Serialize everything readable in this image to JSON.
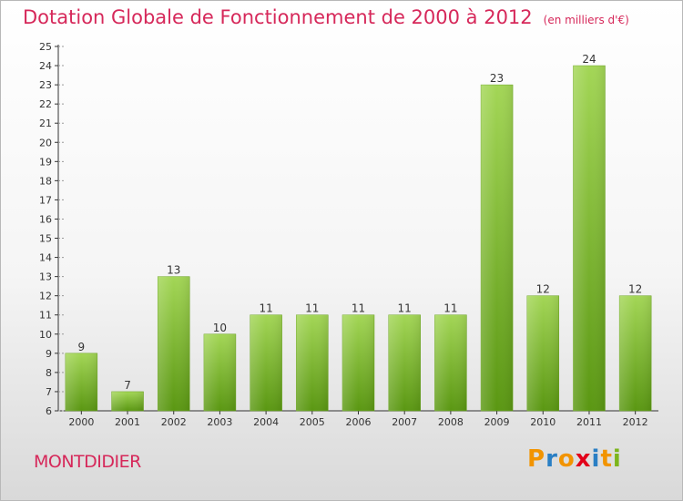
{
  "title": "Dotation Globale de Fonctionnement de 2000 à 2012",
  "subtitle": "(en milliers d'€)",
  "commune": "MONTDIDIER",
  "brand": {
    "letters": [
      "P",
      "r",
      "o",
      "x",
      "i",
      "t",
      "i"
    ],
    "colors": [
      "#f29400",
      "#2a7fc4",
      "#f29400",
      "#e2001a",
      "#2a7fc4",
      "#f29400",
      "#7cb51c"
    ]
  },
  "colors": {
    "title": "#d6285a",
    "bar_light": "#9fd452",
    "bar_dark": "#5c9a12",
    "axis": "#333333",
    "grid_dash": "#888888"
  },
  "chart_data": {
    "type": "bar",
    "categories": [
      "2000",
      "2001",
      "2002",
      "2003",
      "2004",
      "2005",
      "2006",
      "2007",
      "2008",
      "2009",
      "2010",
      "2011",
      "2012"
    ],
    "values": [
      9,
      7,
      13,
      10,
      11,
      11,
      11,
      11,
      11,
      23,
      12,
      24,
      12
    ],
    "ylim": [
      6,
      25
    ],
    "yticks": [
      6,
      7,
      8,
      9,
      10,
      11,
      12,
      13,
      14,
      15,
      16,
      17,
      18,
      19,
      20,
      21,
      22,
      23,
      24,
      25
    ],
    "grid": false,
    "legend": "none"
  }
}
